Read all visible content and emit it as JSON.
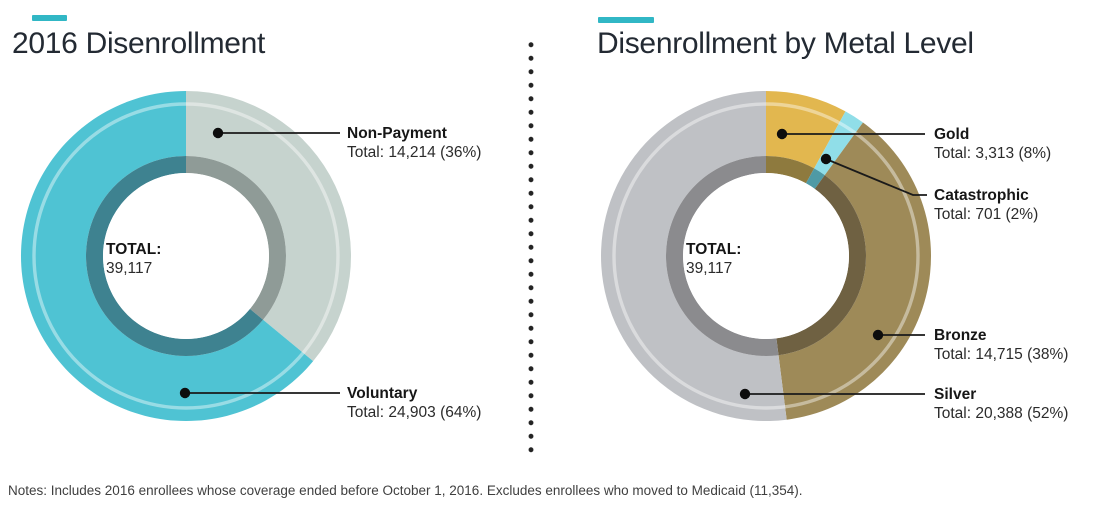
{
  "accent_color": "#31b7c5",
  "notes": "Notes: Includes 2016 enrollees whose coverage ended before October 1, 2016. Excludes enrollees who moved to Medicaid (11,354).",
  "chart_data": [
    {
      "type": "pie",
      "variant": "donut",
      "title": "2016 Disenrollment",
      "center_label": "TOTAL:",
      "center_value": "39,117",
      "total": 39117,
      "start_angle_deg": 0,
      "direction": "clockwise",
      "legend_position": "callout-right",
      "slices": [
        {
          "name": "Non-Payment",
          "value": 14214,
          "pct": 36,
          "total_label": "Total: 14,214 (36%)",
          "color": "#c6d3ce",
          "inner_color": "#8f9b97"
        },
        {
          "name": "Voluntary",
          "value": 24903,
          "pct": 64,
          "total_label": "Total: 24,903 (64%)",
          "color": "#4fc3d3",
          "inner_color": "#3e8290"
        }
      ]
    },
    {
      "type": "pie",
      "variant": "donut",
      "title": "Disenrollment by Metal Level",
      "center_label": "TOTAL:",
      "center_value": "39,117",
      "total": 39117,
      "start_angle_deg": 0,
      "direction": "clockwise",
      "legend_position": "callout-right",
      "slices": [
        {
          "name": "Gold",
          "value": 3313,
          "pct": 8,
          "total_label": "Total: 3,313 (8%)",
          "color": "#e2b74f",
          "inner_color": "#8e7a3e"
        },
        {
          "name": "Catastrophic",
          "value": 701,
          "pct": 2,
          "total_label": "Total: 701 (2%)",
          "color": "#90dee8",
          "inner_color": "#4f9aa5"
        },
        {
          "name": "Bronze",
          "value": 14715,
          "pct": 38,
          "total_label": "Total: 14,715 (38%)",
          "color": "#9e8a58",
          "inner_color": "#6f6142"
        },
        {
          "name": "Silver",
          "value": 20388,
          "pct": 52,
          "total_label": "Total: 20,388 (52%)",
          "color": "#bfc1c5",
          "inner_color": "#8b8b8e"
        }
      ]
    }
  ]
}
